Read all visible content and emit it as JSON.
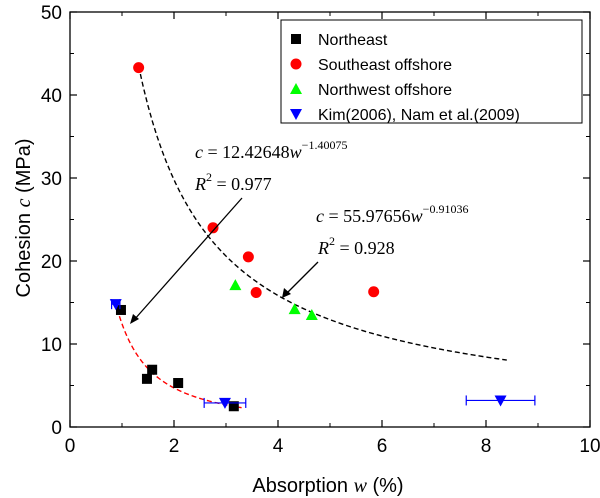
{
  "chart_data": {
    "type": "scatter",
    "xlabel": "Absorption",
    "xlabel_var": "w",
    "xlabel_unit": "(%)",
    "ylabel": "Cohesion",
    "ylabel_var": "c",
    "ylabel_unit": "(MPa)",
    "xlim": [
      0,
      10
    ],
    "ylim": [
      0,
      50
    ],
    "xticks": [
      "0",
      "2",
      "4",
      "6",
      "8",
      "10"
    ],
    "yticks": [
      "0",
      "10",
      "20",
      "30",
      "40",
      "50"
    ],
    "grid": false,
    "legend_position": "top-right",
    "series": [
      {
        "name": "Northeast",
        "marker": "square",
        "color": "#000000",
        "points": [
          {
            "x": 0.98,
            "y": 14.1
          },
          {
            "x": 1.48,
            "y": 5.8
          },
          {
            "x": 1.58,
            "y": 6.9
          },
          {
            "x": 2.08,
            "y": 5.3
          },
          {
            "x": 3.15,
            "y": 2.5
          }
        ]
      },
      {
        "name": "Southeast offshore",
        "marker": "circle",
        "color": "#ff0000",
        "points": [
          {
            "x": 1.32,
            "y": 43.3
          },
          {
            "x": 2.75,
            "y": 24.0
          },
          {
            "x": 3.43,
            "y": 20.5
          },
          {
            "x": 3.58,
            "y": 16.2
          },
          {
            "x": 5.84,
            "y": 16.3
          }
        ]
      },
      {
        "name": "Northwest offshore",
        "marker": "triangle-up",
        "color": "#00ff00",
        "points": [
          {
            "x": 3.18,
            "y": 17.1
          },
          {
            "x": 4.32,
            "y": 14.2
          },
          {
            "x": 4.65,
            "y": 13.5
          }
        ]
      },
      {
        "name": "Kim(2006), Nam et al.(2009)",
        "marker": "triangle-down",
        "color": "#0000ff",
        "points": [
          {
            "x": 0.88,
            "y": 14.8,
            "xerr": 0.08
          },
          {
            "x": 2.98,
            "y": 2.9,
            "xerr": 0.4
          },
          {
            "x": 8.28,
            "y": 3.2,
            "xerr": 0.66
          }
        ]
      }
    ],
    "fits": [
      {
        "color": "#000000",
        "a": 55.97656,
        "b": -0.91036,
        "x_range": [
          1.32,
          8.4
        ],
        "equation_prefix": "c = 55.97656w",
        "equation_exponent": "−0.91036",
        "r2_label": "R",
        "r2_sup": "2",
        "r2_value": " = 0.928"
      },
      {
        "color": "#ff0000",
        "a": 12.42648,
        "b": -1.40075,
        "x_range": [
          0.95,
          3.3
        ],
        "equation_prefix": "c = 12.42648w",
        "equation_exponent": "−1.40075",
        "r2_label": "R",
        "r2_sup": "2",
        "r2_value": " = 0.977"
      }
    ]
  }
}
